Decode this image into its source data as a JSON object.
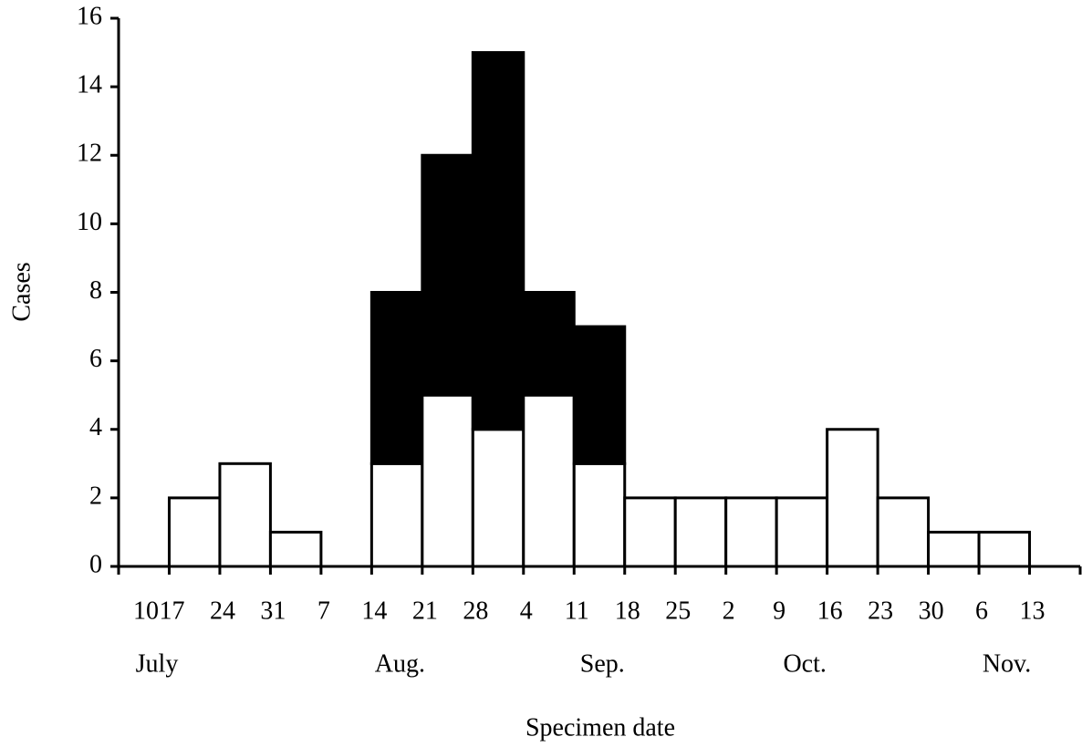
{
  "chart_data": {
    "type": "stacked-bar",
    "y_label": "Cases",
    "x_label": "Specimen date",
    "categories": [
      "10",
      "17",
      "24",
      "31",
      "7",
      "14",
      "21",
      "28",
      "4",
      "11",
      "18",
      "25",
      "2",
      "9",
      "16",
      "23",
      "30",
      "6",
      "13"
    ],
    "month_labels": [
      "July",
      null,
      null,
      null,
      null,
      "Aug.",
      null,
      null,
      null,
      "Sep.",
      null,
      null,
      null,
      "Oct.",
      null,
      null,
      null,
      null,
      "Nov."
    ],
    "series": [
      {
        "color": "#ffffff",
        "values": [
          0,
          2,
          3,
          1,
          0,
          3,
          5,
          4,
          5,
          3,
          2,
          2,
          2,
          2,
          4,
          2,
          1,
          1,
          0
        ]
      },
      {
        "color": "#000000",
        "values": [
          0,
          0,
          0,
          0,
          0,
          5,
          7,
          11,
          3,
          4,
          0,
          0,
          0,
          0,
          0,
          0,
          0,
          0,
          0
        ]
      }
    ],
    "ylim": [
      0,
      16
    ],
    "yticks": [
      0,
      2,
      4,
      6,
      8,
      10,
      12,
      14,
      16
    ]
  }
}
